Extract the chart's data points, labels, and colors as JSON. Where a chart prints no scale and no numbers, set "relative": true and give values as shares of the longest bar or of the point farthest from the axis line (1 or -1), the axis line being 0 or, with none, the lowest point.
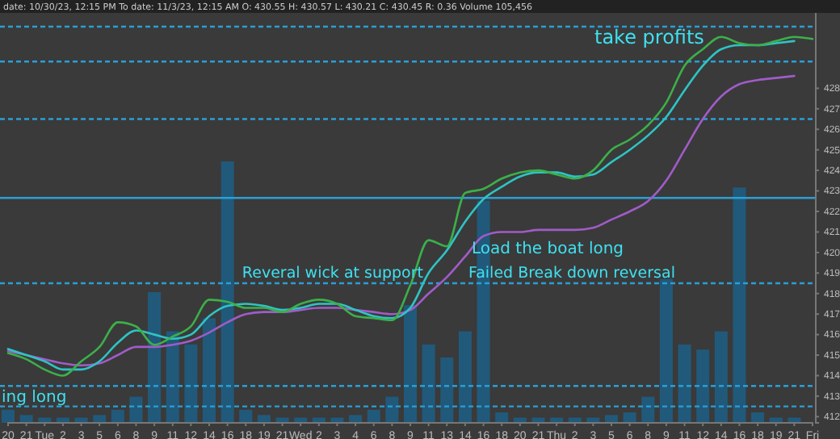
{
  "chart_data": [
    {
      "type": "line",
      "subtitle": "date: 10/30/23, 12:15 PM   To date: 11/3/23, 12:15 AM   O: 430.55   H: 430.57   L: 430.21   C: 430.45   R: 0.36   Volume 105,456",
      "categories": [
        "20",
        "21",
        "Tue",
        "2",
        "3",
        "5",
        "6",
        "8",
        "9",
        "11",
        "12",
        "14",
        "16",
        "18",
        "19",
        "21",
        "Wed",
        "2",
        "3",
        "4",
        "6",
        "8",
        "9",
        "11",
        "13",
        "14",
        "16",
        "18",
        "20",
        "21",
        "Thu",
        "2",
        "3",
        "5",
        "6",
        "8",
        "9",
        "11",
        "12",
        "14",
        "16",
        "18",
        "19",
        "21",
        "Fri"
      ],
      "series": [
        {
          "color": "#a05cc8",
          "values": [
            415.2,
            415.0,
            414.8,
            414.6,
            414.5,
            414.6,
            415.0,
            415.4,
            415.4,
            415.5,
            415.7,
            416.1,
            416.6,
            417.0,
            417.1,
            417.1,
            417.2,
            417.3,
            417.3,
            417.2,
            417.1,
            417.0,
            417.2,
            418.0,
            418.8,
            419.8,
            420.8,
            421.0,
            421.0,
            421.1,
            421.1,
            421.1,
            421.2,
            421.6,
            422.0,
            422.5,
            423.5,
            425.0,
            426.5,
            427.6,
            428.2,
            428.4,
            428.5,
            428.6,
            null
          ]
        },
        {
          "color": "#2ec4c4",
          "values": [
            415.3,
            415.0,
            414.7,
            414.3,
            414.3,
            414.7,
            415.6,
            416.2,
            416.0,
            415.8,
            416.0,
            416.9,
            417.4,
            417.5,
            417.4,
            417.2,
            417.3,
            417.5,
            417.5,
            417.2,
            416.9,
            416.8,
            417.3,
            419.0,
            420.1,
            421.5,
            422.6,
            423.2,
            423.7,
            423.9,
            423.9,
            423.7,
            423.8,
            424.4,
            425.0,
            425.7,
            426.6,
            427.9,
            429.1,
            429.9,
            430.1,
            430.1,
            430.2,
            430.3,
            null
          ]
        },
        {
          "color": "#3cb04a",
          "values": [
            415.1,
            414.8,
            414.3,
            414.0,
            414.7,
            415.4,
            416.6,
            416.4,
            415.5,
            415.9,
            416.4,
            417.7,
            417.6,
            417.3,
            417.3,
            417.1,
            417.5,
            417.7,
            417.5,
            416.9,
            416.8,
            416.7,
            418.4,
            420.6,
            420.3,
            422.9,
            423.1,
            423.6,
            423.9,
            424.0,
            423.8,
            423.6,
            424.0,
            425.0,
            425.5,
            426.2,
            427.3,
            429.1,
            429.9,
            430.5,
            430.2,
            430.1,
            430.3,
            430.5,
            430.4
          ]
        }
      ],
      "ylim": [
        411.7,
        432.3
      ],
      "yticks": [
        412,
        413,
        414,
        415,
        416,
        417,
        418,
        419,
        420,
        421,
        422,
        423,
        424,
        425,
        426,
        427,
        428
      ],
      "ref_lines": [
        {
          "axis": "y",
          "value": 431,
          "color": "#2a9fd6",
          "line_style": "dashed"
        },
        {
          "axis": "y",
          "value": 429.3,
          "color": "#2a9fd6",
          "line_style": "dashed"
        },
        {
          "axis": "y",
          "value": 426.5,
          "color": "#2a9fd6",
          "line_style": "dashed"
        },
        {
          "axis": "y",
          "value": 422.66,
          "color": "#2a9fd6",
          "line_style": "solid"
        },
        {
          "axis": "y",
          "value": 418.5,
          "color": "#2a9fd6",
          "line_style": "dashed"
        },
        {
          "axis": "y",
          "value": 413.5,
          "color": "#2a9fd6",
          "line_style": "dashed"
        },
        {
          "axis": "y",
          "value": 412.5,
          "color": "#2a9fd6",
          "line_style": "dashed"
        }
      ],
      "annotations": [
        "take profits",
        "Load the boat long",
        "Reveral wick at support",
        "Failed Break down reversal",
        "ing long"
      ],
      "grid": false
    },
    {
      "type": "bar",
      "relative": true,
      "tick_labels": false,
      "color": "#1d5f86",
      "values": [
        0.05,
        0.03,
        0.02,
        0.02,
        0.02,
        0.03,
        0.05,
        0.1,
        0.5,
        0.35,
        0.3,
        0.4,
        1.0,
        0.05,
        0.03,
        0.02,
        0.02,
        0.02,
        0.02,
        0.03,
        0.05,
        0.1,
        0.45,
        0.3,
        0.25,
        0.35,
        0.85,
        0.04,
        0.02,
        0.02,
        0.02,
        0.02,
        0.02,
        0.03,
        0.04,
        0.1,
        0.55,
        0.3,
        0.28,
        0.35,
        0.9,
        0.04,
        0.02,
        0.02,
        null
      ]
    }
  ]
}
